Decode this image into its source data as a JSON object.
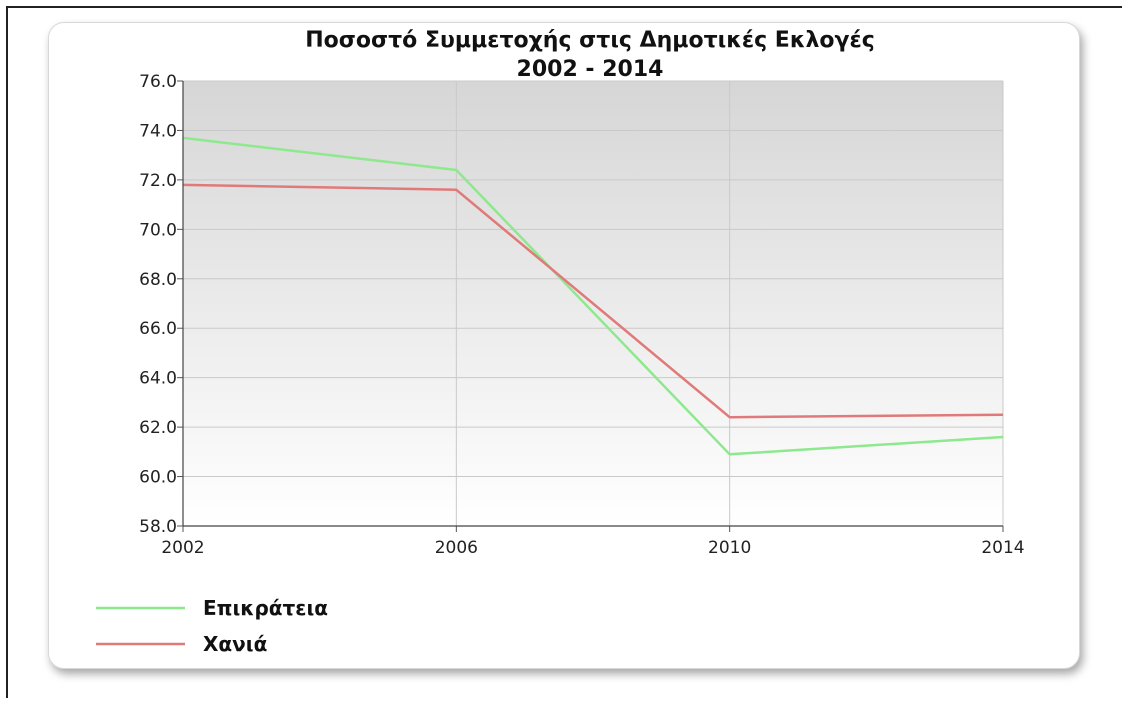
{
  "chart_data": {
    "type": "line",
    "title": "Ποσοστό Συμμετοχής στις Δημοτικές Εκλογές",
    "subtitle": "2002 - 2014",
    "xlabel": "",
    "ylabel": "",
    "x": [
      "2002",
      "2006",
      "2010",
      "2014"
    ],
    "ylim": [
      58,
      76
    ],
    "yticks": [
      58,
      60,
      62,
      64,
      66,
      68,
      70,
      72,
      74,
      76
    ],
    "ytick_labels": [
      "58.0",
      "60.0",
      "62.0",
      "64.0",
      "66.0",
      "68.0",
      "70.0",
      "72.0",
      "74.0",
      "76.0"
    ],
    "grid": true,
    "legend_position": "bottom-left",
    "series": [
      {
        "name": "Επικράτεια",
        "color": "#8ee88e",
        "values": [
          73.7,
          72.4,
          60.9,
          61.6
        ]
      },
      {
        "name": "Χανιά",
        "color": "#e07a7a",
        "values": [
          71.8,
          71.6,
          62.4,
          62.5
        ]
      }
    ]
  }
}
